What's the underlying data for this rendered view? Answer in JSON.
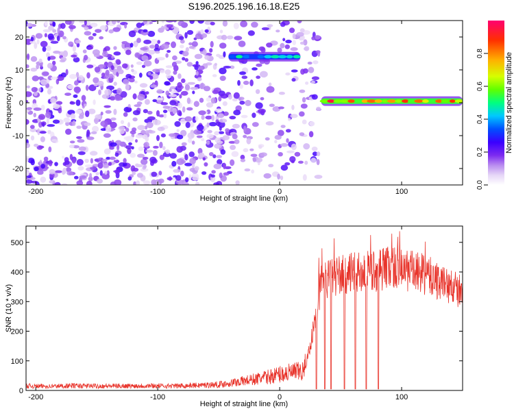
{
  "title": "S196.2025.196.16.18.E25",
  "colors": {
    "snr_line": "#e8332a",
    "axis": "#000000",
    "background": "#ffffff"
  },
  "chart_data": [
    {
      "type": "heatmap",
      "title": "",
      "xlabel": "Height of straight line (km)",
      "ylabel": "Frequency (Hz)",
      "xlim": [
        -208,
        150
      ],
      "ylim": [
        -25,
        25
      ],
      "x_ticks": [
        "-200",
        "-100",
        "0",
        "100"
      ],
      "x_tick_values": [
        -200,
        -100,
        0,
        100
      ],
      "y_ticks": [
        "-20",
        "-10",
        "0",
        "10",
        "20"
      ],
      "y_tick_values": [
        -20,
        -10,
        0,
        10,
        20
      ],
      "colorbar": {
        "label": "Normalized spectral amplitude",
        "range": [
          0,
          1
        ],
        "ticks": [
          "0.0",
          "0.2",
          "0.4",
          "0.6",
          "0.8"
        ],
        "tick_values": [
          0,
          0.2,
          0.4,
          0.6,
          0.8
        ],
        "colormap": [
          "#ffffff",
          "#e6d6f7",
          "#b98cf0",
          "#7d2cf0",
          "#3a00ff",
          "#0050ff",
          "#00c8ff",
          "#00ff80",
          "#60ff00",
          "#d6ff00",
          "#ffb000",
          "#ff3000",
          "#ff0070"
        ]
      },
      "features": [
        {
          "region": "noise",
          "x_range": [
            -208,
            33
          ],
          "y_range": [
            -25,
            25
          ],
          "amplitude": 0.15
        },
        {
          "region": "band",
          "x_range": [
            -42,
            17
          ],
          "frequency": 14,
          "amplitude": 0.55
        },
        {
          "region": "band",
          "x_range": [
            34,
            150
          ],
          "frequency": 0.5,
          "amplitude": 0.9
        }
      ]
    },
    {
      "type": "line",
      "title": "",
      "xlabel": "Height of straight line (km)",
      "ylabel": "SNR (10 * v/v)",
      "xlim": [
        -208,
        150
      ],
      "ylim": [
        0,
        555
      ],
      "x_ticks": [
        "-200",
        "-100",
        "0",
        "100"
      ],
      "x_tick_values": [
        -200,
        -100,
        0,
        100
      ],
      "y_ticks": [
        "0",
        "100",
        "200",
        "300",
        "400",
        "500"
      ],
      "y_tick_values": [
        0,
        100,
        200,
        300,
        400,
        500
      ],
      "series": [
        {
          "x": [
            -208,
            -190,
            -170,
            -150,
            -130,
            -110,
            -90,
            -70,
            -50,
            -40,
            -30,
            -20,
            -10,
            0,
            10,
            20,
            25,
            28,
            30,
            33,
            35,
            40,
            50,
            60,
            70,
            80,
            90,
            100,
            110,
            120,
            130,
            140,
            150
          ],
          "values": [
            15,
            14,
            16,
            15,
            15,
            16,
            15,
            17,
            20,
            25,
            32,
            38,
            45,
            55,
            60,
            65,
            150,
            220,
            250,
            340,
            365,
            380,
            390,
            395,
            400,
            405,
            420,
            410,
            400,
            390,
            370,
            350,
            330
          ]
        }
      ],
      "dropouts_x": [
        30,
        37,
        42,
        53,
        62,
        71,
        81
      ]
    }
  ]
}
